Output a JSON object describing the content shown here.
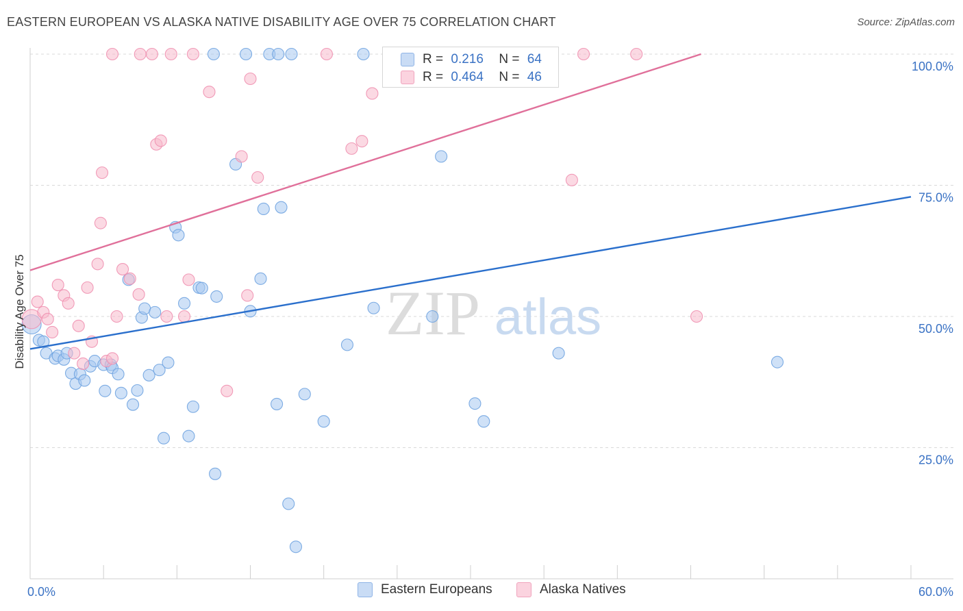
{
  "title": "EASTERN EUROPEAN VS ALASKA NATIVE DISABILITY AGE OVER 75 CORRELATION CHART",
  "source": "Source: ZipAtlas.com",
  "watermark": {
    "zip": "ZIP",
    "atlas": "atlas"
  },
  "legend": {
    "r_label": "R =",
    "n_label": "N =",
    "rows": [
      {
        "r": "0.216",
        "n": "64",
        "color": "#a8c8f0"
      },
      {
        "r": "0.464",
        "n": "46",
        "color": "#f8b9cc"
      }
    ]
  },
  "chart_data": {
    "type": "scatter",
    "title": "EASTERN EUROPEAN VS ALASKA NATIVE DISABILITY AGE OVER 75 CORRELATION CHART",
    "xlabel": "",
    "ylabel": "Disability Age Over 75",
    "xlim": [
      0,
      60
    ],
    "ylim": [
      0,
      100
    ],
    "x_tick_labels": [
      "0.0%",
      "60.0%"
    ],
    "y_tick_labels": [
      "25.0%",
      "50.0%",
      "75.0%",
      "100.0%"
    ],
    "y_ticks": [
      25,
      50,
      75,
      100
    ],
    "grid": "horizontal dashed",
    "legend_position": "top-center",
    "series": [
      {
        "name": "Eastern Europeans",
        "color": "#6fa3e0",
        "fill": "#a8c8f0",
        "trend_color": "#2a6fcc",
        "trend": {
          "x": [
            0,
            60
          ],
          "y": [
            43.8,
            72.8
          ]
        },
        "points": [
          [
            0.1,
            48.5
          ],
          [
            0.6,
            45.5
          ],
          [
            0.9,
            45.2
          ],
          [
            1.1,
            43.0
          ],
          [
            1.7,
            42.0
          ],
          [
            1.9,
            42.5
          ],
          [
            2.3,
            41.8
          ],
          [
            2.5,
            43.0
          ],
          [
            2.8,
            39.2
          ],
          [
            3.1,
            37.2
          ],
          [
            3.4,
            39.0
          ],
          [
            3.7,
            37.8
          ],
          [
            4.1,
            40.5
          ],
          [
            4.4,
            41.5
          ],
          [
            5.0,
            40.8
          ],
          [
            5.1,
            35.8
          ],
          [
            5.5,
            40.8
          ],
          [
            5.6,
            40.2
          ],
          [
            6.0,
            39.0
          ],
          [
            6.2,
            35.4
          ],
          [
            6.7,
            57.0
          ],
          [
            7.0,
            33.2
          ],
          [
            7.3,
            35.9
          ],
          [
            7.6,
            49.8
          ],
          [
            7.8,
            51.5
          ],
          [
            8.1,
            38.8
          ],
          [
            8.5,
            50.8
          ],
          [
            8.8,
            39.8
          ],
          [
            9.1,
            26.8
          ],
          [
            9.4,
            41.2
          ],
          [
            9.9,
            67.0
          ],
          [
            10.1,
            65.5
          ],
          [
            10.5,
            52.5
          ],
          [
            10.8,
            27.2
          ],
          [
            11.1,
            32.8
          ],
          [
            11.5,
            55.5
          ],
          [
            11.7,
            55.4
          ],
          [
            12.5,
            100
          ],
          [
            12.6,
            20.0
          ],
          [
            12.7,
            53.8
          ],
          [
            14.0,
            79.0
          ],
          [
            14.7,
            100
          ],
          [
            15.0,
            51.0
          ],
          [
            15.7,
            57.2
          ],
          [
            15.9,
            70.5
          ],
          [
            16.3,
            100
          ],
          [
            16.8,
            33.3
          ],
          [
            16.9,
            100
          ],
          [
            17.1,
            70.8
          ],
          [
            17.6,
            14.3
          ],
          [
            17.8,
            100
          ],
          [
            18.1,
            6.1
          ],
          [
            18.7,
            35.2
          ],
          [
            20.0,
            30.0
          ],
          [
            21.6,
            44.6
          ],
          [
            22.7,
            100
          ],
          [
            23.4,
            51.6
          ],
          [
            27.4,
            50.0
          ],
          [
            28.0,
            80.5
          ],
          [
            30.3,
            33.4
          ],
          [
            30.9,
            30.0
          ],
          [
            33.5,
            100
          ],
          [
            36.0,
            43.0
          ],
          [
            50.9,
            41.3
          ]
        ]
      },
      {
        "name": "Alaska Natives",
        "color": "#f090b0",
        "fill": "#f8b9cc",
        "trend_color": "#e0709a",
        "trend": {
          "x": [
            0,
            45.7
          ],
          "y": [
            58.8,
            100
          ]
        },
        "points": [
          [
            0.1,
            49.5
          ],
          [
            0.5,
            52.8
          ],
          [
            0.9,
            50.8
          ],
          [
            1.2,
            49.5
          ],
          [
            1.5,
            47.0
          ],
          [
            1.9,
            56.0
          ],
          [
            2.3,
            54.0
          ],
          [
            2.6,
            52.5
          ],
          [
            3.0,
            43.0
          ],
          [
            3.3,
            48.2
          ],
          [
            3.6,
            41.0
          ],
          [
            3.9,
            55.5
          ],
          [
            4.2,
            45.2
          ],
          [
            4.6,
            60.0
          ],
          [
            4.8,
            67.8
          ],
          [
            4.9,
            77.4
          ],
          [
            5.2,
            41.5
          ],
          [
            5.6,
            42.0
          ],
          [
            5.6,
            100
          ],
          [
            5.9,
            50.0
          ],
          [
            6.3,
            59.0
          ],
          [
            6.8,
            57.2
          ],
          [
            7.4,
            54.2
          ],
          [
            7.5,
            100
          ],
          [
            8.3,
            100
          ],
          [
            8.6,
            82.8
          ],
          [
            8.9,
            83.5
          ],
          [
            9.3,
            50.0
          ],
          [
            9.6,
            100
          ],
          [
            10.5,
            50.0
          ],
          [
            10.8,
            57.0
          ],
          [
            11.1,
            100
          ],
          [
            12.2,
            92.8
          ],
          [
            13.4,
            35.8
          ],
          [
            14.4,
            80.5
          ],
          [
            14.8,
            54.0
          ],
          [
            15.0,
            95.3
          ],
          [
            15.5,
            76.5
          ],
          [
            20.2,
            100
          ],
          [
            21.9,
            82.0
          ],
          [
            22.6,
            83.4
          ],
          [
            23.3,
            92.5
          ],
          [
            36.9,
            76.0
          ],
          [
            37.7,
            100
          ],
          [
            41.3,
            100
          ],
          [
            45.4,
            50.0
          ]
        ]
      }
    ]
  }
}
